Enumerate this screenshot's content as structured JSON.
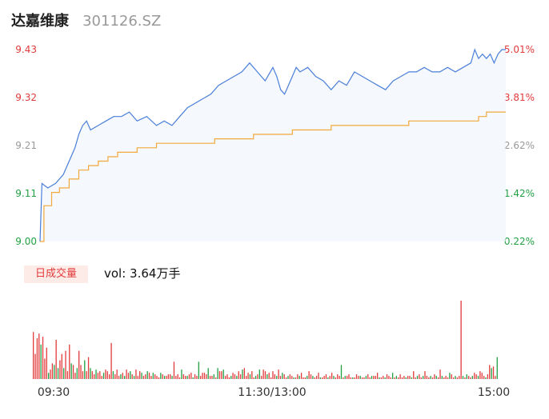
{
  "stock": {
    "name": "达嘉维康",
    "code": "301126.SZ"
  },
  "volume_panel": {
    "tab_label": "日成交量",
    "vol_prefix": "vol: ",
    "vol_value": "3.64万手"
  },
  "colors": {
    "price_line": "#4a7fd9",
    "avg_line": "#f2a93b",
    "up": "#e23b3b",
    "down": "#22a044",
    "neutral": "#999999"
  },
  "chart_data": [
    {
      "type": "line",
      "title": "",
      "x_ticks": [
        "09:30",
        "11:30/13:00",
        "15:00"
      ],
      "y_ticks_left": [
        "9.43",
        "9.32",
        "9.21",
        "9.11",
        "9.00"
      ],
      "y_ticks_right": [
        "5.01%",
        "3.81%",
        "2.62%",
        "1.42%",
        "0.22%"
      ],
      "ylim": [
        9.0,
        9.43
      ],
      "x_range_minutes": [
        0,
        240
      ],
      "series": [
        {
          "role": "price",
          "x": [
            0,
            1,
            4,
            8,
            12,
            15,
            18,
            20,
            22,
            24,
            26,
            30,
            34,
            38,
            42,
            46,
            50,
            55,
            60,
            64,
            68,
            72,
            76,
            80,
            84,
            88,
            92,
            96,
            100,
            104,
            108,
            112,
            116,
            120,
            122,
            124,
            126,
            128,
            130,
            132,
            134,
            138,
            142,
            146,
            150,
            154,
            158,
            162,
            166,
            170,
            174,
            178,
            182,
            186,
            190,
            194,
            198,
            202,
            206,
            210,
            214,
            218,
            222,
            224,
            226,
            228,
            230,
            232,
            234,
            236,
            238,
            240
          ],
          "y": [
            9.0,
            9.13,
            9.12,
            9.13,
            9.15,
            9.18,
            9.21,
            9.24,
            9.26,
            9.27,
            9.25,
            9.26,
            9.27,
            9.28,
            9.28,
            9.29,
            9.27,
            9.28,
            9.26,
            9.27,
            9.26,
            9.28,
            9.3,
            9.31,
            9.32,
            9.33,
            9.35,
            9.36,
            9.37,
            9.38,
            9.4,
            9.38,
            9.36,
            9.39,
            9.37,
            9.34,
            9.33,
            9.35,
            9.37,
            9.39,
            9.38,
            9.39,
            9.37,
            9.36,
            9.34,
            9.36,
            9.35,
            9.38,
            9.37,
            9.36,
            9.35,
            9.34,
            9.36,
            9.37,
            9.38,
            9.38,
            9.39,
            9.38,
            9.38,
            9.39,
            9.38,
            9.39,
            9.4,
            9.43,
            9.41,
            9.42,
            9.41,
            9.42,
            9.4,
            9.42,
            9.43,
            9.43
          ]
        },
        {
          "role": "average",
          "x": [
            0,
            2,
            6,
            10,
            15,
            20,
            25,
            30,
            35,
            40,
            50,
            60,
            70,
            80,
            90,
            100,
            110,
            120,
            130,
            140,
            150,
            160,
            170,
            180,
            190,
            200,
            210,
            220,
            226,
            230,
            240
          ],
          "y": [
            9.0,
            9.08,
            9.11,
            9.12,
            9.14,
            9.16,
            9.17,
            9.18,
            9.19,
            9.2,
            9.21,
            9.22,
            9.22,
            9.22,
            9.23,
            9.23,
            9.24,
            9.24,
            9.25,
            9.25,
            9.26,
            9.26,
            9.26,
            9.26,
            9.27,
            9.27,
            9.27,
            9.27,
            9.28,
            9.29,
            9.29
          ]
        }
      ]
    },
    {
      "type": "bar",
      "title": "",
      "unit_note": "per-minute volume, relative scale (max = 100)",
      "values": [
        60,
        32,
        52,
        58,
        44,
        54,
        26,
        40,
        8,
        12,
        20,
        18,
        50,
        14,
        24,
        32,
        14,
        36,
        10,
        44,
        20,
        18,
        8,
        14,
        36,
        18,
        10,
        24,
        10,
        28,
        14,
        10,
        6,
        12,
        8,
        10,
        4,
        8,
        12,
        10,
        6,
        46,
        10,
        6,
        12,
        4,
        6,
        8,
        4,
        12,
        8,
        10,
        6,
        4,
        12,
        4,
        10,
        8,
        4,
        6,
        10,
        8,
        4,
        8,
        6,
        4,
        2,
        8,
        6,
        4,
        4,
        6,
        6,
        4,
        22,
        4,
        6,
        2,
        12,
        6,
        4,
        4,
        6,
        8,
        2,
        6,
        4,
        22,
        4,
        8,
        8,
        6,
        14,
        4,
        4,
        6,
        2,
        14,
        10,
        10,
        12,
        4,
        6,
        2,
        4,
        8,
        6,
        4,
        10,
        6,
        12,
        14,
        4,
        8,
        6,
        10,
        2,
        4,
        6,
        12,
        4,
        12,
        10,
        6,
        8,
        2,
        10,
        6,
        4,
        12,
        4,
        8,
        6,
        2,
        4,
        6,
        4,
        2,
        2,
        6,
        4,
        8,
        2,
        2,
        4,
        10,
        6,
        4,
        2,
        4,
        8,
        2,
        2,
        4,
        6,
        2,
        4,
        8,
        4,
        2,
        6,
        4,
        18,
        2,
        4,
        4,
        6,
        2,
        2,
        2,
        6,
        4,
        4,
        2,
        2,
        4,
        6,
        2,
        4,
        4,
        4,
        8,
        2,
        2,
        4,
        2,
        6,
        4,
        2,
        8,
        2,
        4,
        2,
        6,
        2,
        4,
        2,
        4,
        4,
        2,
        10,
        2,
        4,
        6,
        2,
        4,
        10,
        4,
        2,
        4,
        2,
        6,
        4,
        2,
        12,
        4,
        2,
        4,
        2,
        8,
        6,
        2,
        4,
        2,
        4,
        100,
        4,
        2,
        6,
        4,
        2,
        4,
        8,
        6,
        4,
        10,
        8,
        4,
        2,
        6,
        18,
        14,
        16,
        4,
        28
      ],
      "up_down": "rrrrgrrrgrrgrgrrgrrrgrrgrrrgrrgrrgrrrgrrrrgrrrgrgrrgrgrrrgrrgrrgrrrgrgrrrgrrrrgrrgrrgrrgrrrrgrrgrgrrgrrrgrrgrrgrrrgrrgrgrrrgrrrrgrrgrrgrrgrrgrrrgrrgrrrgrrrgrrgrrrgrgrrrgrrrgrrgrrgrrrgrrgrrrgrgrrrrgrrgrrgrrgrrrgrrgrrgrrrgrrgrrrgrgrrgrrgrrrgrrgrrgrr"
    }
  ]
}
